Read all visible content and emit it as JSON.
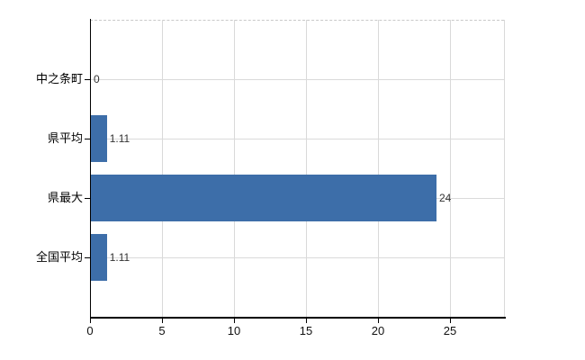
{
  "chart_data": {
    "type": "bar",
    "orientation": "horizontal",
    "title": "",
    "categories": [
      "中之条町",
      "県平均",
      "県最大",
      "全国平均"
    ],
    "values": [
      0,
      1.11,
      24,
      1.11
    ],
    "value_labels": [
      "0",
      "1.11",
      "24",
      "1.11"
    ],
    "x_ticks": [
      "0",
      "5",
      "10",
      "15",
      "20",
      "25"
    ],
    "x_tick_values": [
      0,
      5,
      10,
      15,
      20,
      25
    ],
    "xlim": [
      0,
      28.75
    ],
    "grid": true,
    "legend": false,
    "colors": {
      "bar": "#3d6ea9",
      "gridline": "#d9d9d9",
      "axis": "#000000",
      "category_text": "#000000",
      "value_text": "#333333",
      "background": "#ffffff"
    }
  }
}
